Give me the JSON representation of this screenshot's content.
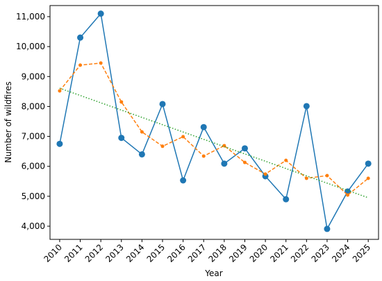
{
  "chart_data": {
    "type": "line",
    "x_label": "Year",
    "y_label": "Number of wildfires",
    "x": [
      2010,
      2011,
      2012,
      2013,
      2014,
      2015,
      2016,
      2017,
      2018,
      2019,
      2020,
      2021,
      2022,
      2023,
      2024,
      2025
    ],
    "series": [
      {
        "color": "#1f77b4",
        "linestyle": "solid",
        "marker_size": 4.5,
        "values": [
          6750,
          10300,
          11100,
          6950,
          6400,
          8080,
          5530,
          7310,
          6090,
          6600,
          5670,
          4900,
          8010,
          3910,
          5160,
          6090
        ]
      },
      {
        "color": "#ff7f0e",
        "linestyle": "dashed",
        "marker_size": 2.5,
        "values": [
          8520,
          9380,
          9450,
          8150,
          7150,
          6670,
          6990,
          6340,
          6690,
          6130,
          5740,
          6200,
          5600,
          5690,
          5040,
          5600
        ]
      },
      {
        "color": "#2ca02c",
        "linestyle": "dotted",
        "marker_size": 0,
        "values": [
          8610,
          8366,
          8122,
          7878,
          7634,
          7390,
          7146,
          6902,
          6658,
          6414,
          6170,
          5926,
          5682,
          5438,
          5194,
          4950
        ]
      }
    ],
    "xlim": [
      2009.53,
      2025.5
    ],
    "xticks": [
      2010,
      2011,
      2012,
      2013,
      2014,
      2015,
      2016,
      2017,
      2018,
      2019,
      2020,
      2021,
      2022,
      2023,
      2024,
      2025
    ],
    "ylim": [
      3560,
      11370
    ],
    "yticks": [
      {
        "value": 4000,
        "label": "4,000"
      },
      {
        "value": 5000,
        "label": "5,000"
      },
      {
        "value": 6000,
        "label": "6,000"
      },
      {
        "value": 7000,
        "label": "7,000"
      },
      {
        "value": 8000,
        "label": "8,000"
      },
      {
        "value": 9000,
        "label": "9,000"
      },
      {
        "value": 10000,
        "label": "10,000"
      },
      {
        "value": 11000,
        "label": "11,000"
      }
    ],
    "grid": false
  }
}
